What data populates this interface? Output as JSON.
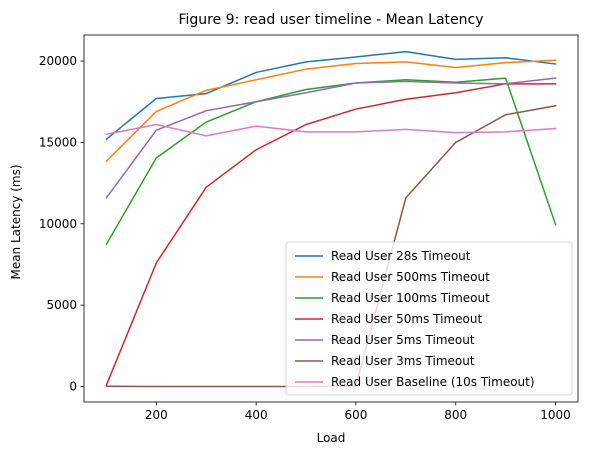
{
  "chart_data": {
    "type": "line",
    "title": "Figure 9: read user timeline - Mean Latency",
    "xlabel": "Load",
    "ylabel": "Mean Latency (ms)",
    "x": [
      100,
      200,
      300,
      400,
      500,
      600,
      700,
      800,
      900,
      1000
    ],
    "xlim": [
      55,
      1045
    ],
    "ylim": [
      -950,
      21600
    ],
    "xticks": [
      200,
      400,
      600,
      800,
      1000
    ],
    "yticks": [
      0,
      5000,
      10000,
      15000,
      20000
    ],
    "legend_position": "lower right",
    "series": [
      {
        "name": "Read User 28s Timeout",
        "color": "#1f77b4",
        "values": [
          15200,
          17700,
          18000,
          19300,
          19950,
          20250,
          20580,
          20100,
          20200,
          19820
        ]
      },
      {
        "name": "Read User 500ms Timeout",
        "color": "#ff7f0e",
        "values": [
          13850,
          16900,
          18200,
          18850,
          19500,
          19850,
          19950,
          19600,
          19900,
          20050
        ]
      },
      {
        "name": "Read User 100ms Timeout",
        "color": "#2ca02c",
        "values": [
          8750,
          14050,
          16250,
          17500,
          18250,
          18650,
          18850,
          18700,
          18950,
          9950
        ]
      },
      {
        "name": "Read User 50ms Timeout",
        "color": "#d62728",
        "values": [
          100,
          7600,
          12250,
          14550,
          16100,
          17050,
          17650,
          18050,
          18600,
          18600
        ]
      },
      {
        "name": "Read User 5ms Timeout",
        "color": "#9467bd",
        "values": [
          11600,
          15750,
          16950,
          17500,
          18050,
          18650,
          18750,
          18650,
          18600,
          18950
        ]
      },
      {
        "name": "Read User 3ms Timeout",
        "color": "#8c564b",
        "values": [
          20,
          0,
          0,
          0,
          0,
          50,
          11600,
          15000,
          16700,
          17250
        ]
      },
      {
        "name": "Read User Baseline (10s Timeout)",
        "color": "#e377c2",
        "values": [
          15500,
          16100,
          15400,
          16000,
          15650,
          15650,
          15800,
          15600,
          15650,
          15850
        ]
      }
    ]
  }
}
